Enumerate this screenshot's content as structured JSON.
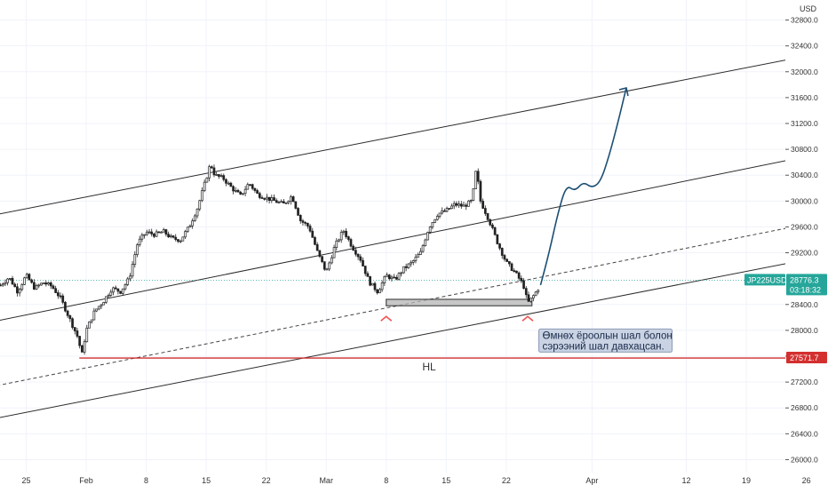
{
  "chart_data": {
    "type": "candlestick",
    "symbol": "JP225USD",
    "currency": "USD",
    "last_price": "28776.3",
    "countdown": "03:18:32",
    "hl_level": 27571.7,
    "hl_level_label": "27571.7",
    "hl_text": "HL",
    "annotation": [
      "Өмнөх ёроолын шал болон",
      "сэрээний шал давхацсан."
    ],
    "ylim": [
      25800,
      33000
    ],
    "y_ticks": [
      {
        "value": 26000,
        "label": "26000.0"
      },
      {
        "value": 26400,
        "label": "26400.0"
      },
      {
        "value": 26800,
        "label": "26800.0"
      },
      {
        "value": 27200,
        "label": "27200.0"
      },
      {
        "value": 27600,
        "label": "27600.0"
      },
      {
        "value": 28000,
        "label": "28000.0"
      },
      {
        "value": 28400,
        "label": "28400.0"
      },
      {
        "value": 29200,
        "label": "29200.0"
      },
      {
        "value": 29600,
        "label": "29600.0"
      },
      {
        "value": 30000,
        "label": "30000.0"
      },
      {
        "value": 30400,
        "label": "30400.0"
      },
      {
        "value": 30800,
        "label": "30800.0"
      },
      {
        "value": 31200,
        "label": "31200.0"
      },
      {
        "value": 31600,
        "label": "31600.0"
      },
      {
        "value": 32000,
        "label": "32000.0"
      },
      {
        "value": 32400,
        "label": "32400.0"
      },
      {
        "value": 32800,
        "label": "32800.0"
      }
    ],
    "x_ticks": [
      {
        "day": -7,
        "label": "25"
      },
      {
        "day": 0,
        "label": "Feb"
      },
      {
        "day": 7,
        "label": "8"
      },
      {
        "day": 14,
        "label": "15"
      },
      {
        "day": 21,
        "label": "22"
      },
      {
        "day": 28,
        "label": "Mar"
      },
      {
        "day": 35,
        "label": "8"
      },
      {
        "day": 42,
        "label": "15"
      },
      {
        "day": 49,
        "label": "22"
      },
      {
        "day": 59,
        "label": "Apr"
      },
      {
        "day": 70,
        "label": "12"
      },
      {
        "day": 77,
        "label": "19"
      },
      {
        "day": 84,
        "label": "26"
      }
    ],
    "price_path": [
      [
        -10,
        28700
      ],
      [
        -9,
        28820
      ],
      [
        -8,
        28600
      ],
      [
        -7,
        28850
      ],
      [
        -6,
        28650
      ],
      [
        -5,
        28740
      ],
      [
        -4,
        28680
      ],
      [
        -3,
        28500
      ],
      [
        -2,
        28200
      ],
      [
        -1,
        27900
      ],
      [
        -0.5,
        27620
      ],
      [
        0,
        28000
      ],
      [
        1,
        28300
      ],
      [
        2,
        28450
      ],
      [
        3,
        28650
      ],
      [
        4,
        28600
      ],
      [
        5,
        28800
      ],
      [
        6,
        29350
      ],
      [
        7,
        29520
      ],
      [
        8,
        29480
      ],
      [
        9,
        29530
      ],
      [
        10,
        29420
      ],
      [
        11,
        29400
      ],
      [
        12,
        29600
      ],
      [
        13,
        29900
      ],
      [
        14,
        30350
      ],
      [
        14.5,
        30580
      ],
      [
        15,
        30400
      ],
      [
        16,
        30350
      ],
      [
        17,
        30200
      ],
      [
        18,
        30080
      ],
      [
        19,
        30280
      ],
      [
        20,
        30100
      ],
      [
        21,
        30050
      ],
      [
        22,
        30000
      ],
      [
        23,
        29950
      ],
      [
        24,
        30080
      ],
      [
        25,
        29700
      ],
      [
        26,
        29600
      ],
      [
        27,
        29200
      ],
      [
        28,
        28900
      ],
      [
        29,
        29300
      ],
      [
        30,
        29550
      ],
      [
        31,
        29300
      ],
      [
        32,
        29100
      ],
      [
        33,
        28750
      ],
      [
        34,
        28600
      ],
      [
        35,
        28850
      ],
      [
        36,
        28780
      ],
      [
        37,
        28950
      ],
      [
        38,
        29050
      ],
      [
        39,
        29200
      ],
      [
        40,
        29600
      ],
      [
        41,
        29800
      ],
      [
        42,
        29850
      ],
      [
        43,
        29950
      ],
      [
        44,
        29920
      ],
      [
        45,
        30000
      ],
      [
        45.5,
        30500
      ],
      [
        46,
        30000
      ],
      [
        47,
        29700
      ],
      [
        48,
        29350
      ],
      [
        49,
        29050
      ],
      [
        50,
        28900
      ],
      [
        51,
        28700
      ],
      [
        51.5,
        28420
      ],
      [
        52,
        28500
      ],
      [
        53,
        28700
      ]
    ],
    "projection": [
      [
        53,
        28700
      ],
      [
        54,
        29200
      ],
      [
        55,
        29800
      ],
      [
        56,
        30250
      ],
      [
        57,
        30150
      ],
      [
        58,
        30300
      ],
      [
        59,
        30200
      ],
      [
        60,
        30300
      ],
      [
        61,
        30700
      ],
      [
        62,
        31200
      ],
      [
        63,
        31750
      ]
    ],
    "channel_lines": [
      {
        "style": "solid",
        "from": [
          -14,
          29700
        ],
        "to": [
          90,
          32400
        ]
      },
      {
        "style": "solid",
        "from": [
          -14,
          28050
        ],
        "to": [
          90,
          30850
        ]
      },
      {
        "style": "dashed",
        "from": [
          -14,
          27050
        ],
        "to": [
          90,
          29800
        ]
      },
      {
        "style": "solid",
        "from": [
          -14,
          26550
        ],
        "to": [
          90,
          29250
        ]
      }
    ],
    "support_zone": {
      "from_day": 35,
      "to_day": 52,
      "top": 28480,
      "bottom": 28380
    },
    "markers": [
      {
        "day": 35
      },
      {
        "day": 51.5
      }
    ],
    "colors": {
      "up": "#26a69a",
      "down": "#ef5350",
      "candle": "#222222",
      "hl_line": "#d32f2f",
      "projection": "#1c4f73",
      "price_label_bg": "#26a69a",
      "marker": "#ef5350"
    }
  }
}
